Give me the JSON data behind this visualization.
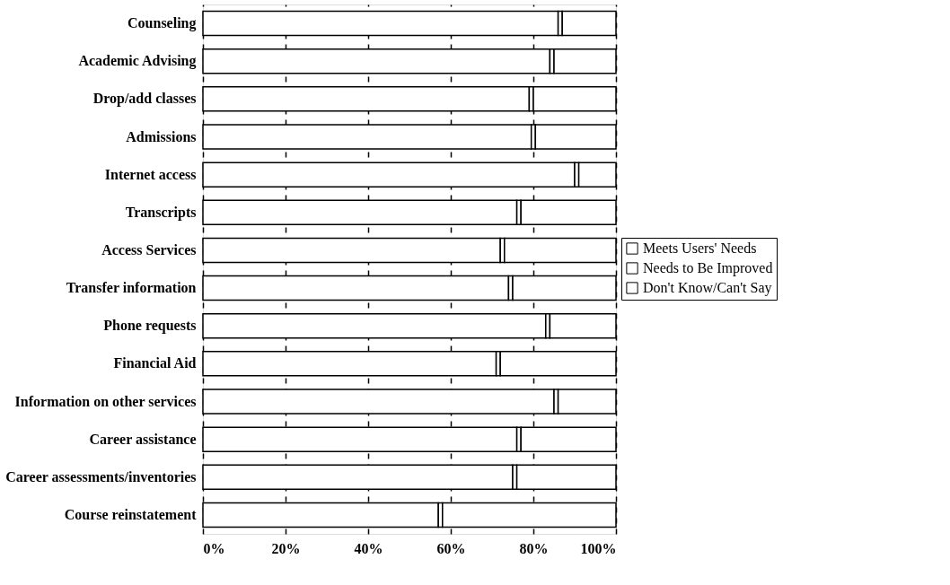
{
  "chart_data": {
    "type": "bar",
    "orientation": "horizontal",
    "stacked": true,
    "categories": [
      "Counseling",
      "Academic Advising",
      "Drop/add classes",
      "Admissions",
      "Internet access",
      "Transcripts",
      "Access Services",
      "Transfer information",
      "Phone requests",
      "Financial Aid",
      "Information on other services",
      "Career assistance",
      "Career assessments/inventories",
      "Course reinstatement"
    ],
    "series": [
      {
        "name": "Meets Users' Needs",
        "color": "#ffffff",
        "values": [
          86,
          84,
          79,
          79.5,
          90,
          76,
          72,
          74,
          83,
          71,
          85,
          76,
          75,
          57
        ]
      },
      {
        "name": "Needs to Be Improved",
        "color": "#ffffff",
        "values": [
          1,
          1,
          1,
          1,
          1,
          1,
          1,
          1,
          1,
          1,
          1,
          1,
          1,
          1
        ]
      },
      {
        "name": "Don't Know/Can't Say",
        "color": "#ffffff",
        "values": [
          13,
          15,
          20,
          19.5,
          9,
          23,
          27,
          25,
          16,
          28,
          14,
          23,
          24,
          42
        ]
      }
    ],
    "xlim": [
      0,
      100
    ],
    "xticks": [
      {
        "value": 0,
        "label": "0%"
      },
      {
        "value": 20,
        "label": "20%"
      },
      {
        "value": 40,
        "label": "40%"
      },
      {
        "value": 60,
        "label": "60%"
      },
      {
        "value": 80,
        "label": "80%"
      },
      {
        "value": 100,
        "label": "100%"
      }
    ],
    "grid": "x",
    "legend": "right"
  }
}
